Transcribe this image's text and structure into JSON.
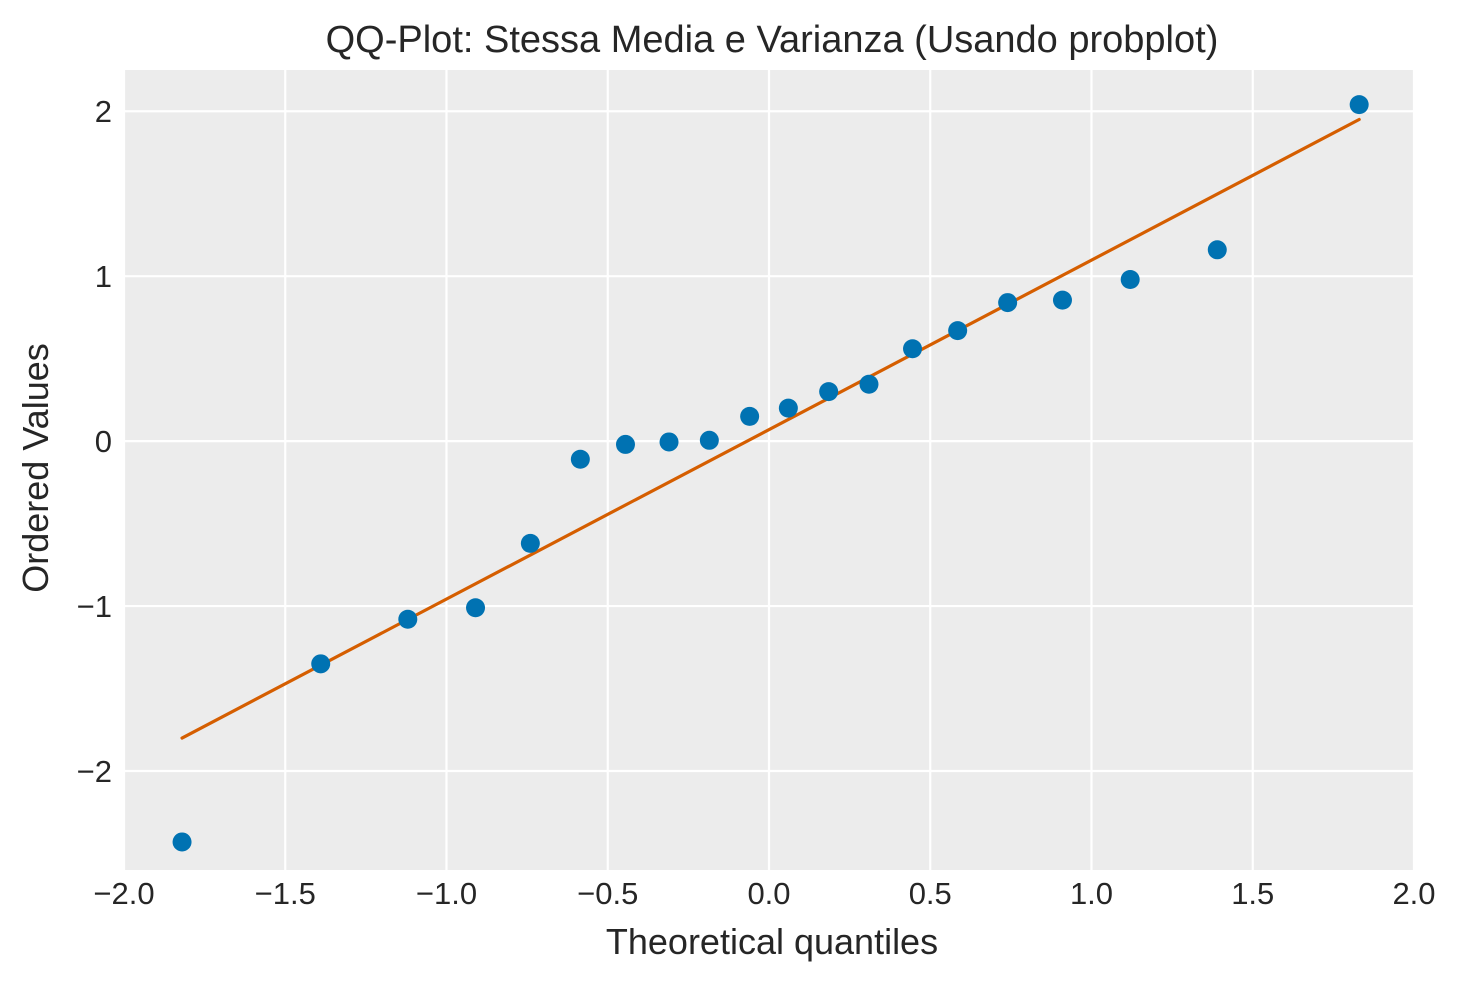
{
  "chart_data": {
    "type": "scatter",
    "title": "QQ-Plot: Stessa Media e Varianza (Usando probplot)",
    "xlabel": "Theoretical quantiles",
    "ylabel": "Ordered Values",
    "xlim": [
      -2.0,
      2.0
    ],
    "ylim": [
      -2.6,
      2.25
    ],
    "xticks": [
      -2.0,
      -1.5,
      -1.0,
      -0.5,
      0.0,
      0.5,
      1.0,
      1.5,
      2.0
    ],
    "xtick_labels": [
      "−2.0",
      "−1.5",
      "−1.0",
      "−0.5",
      "0.0",
      "0.5",
      "1.0",
      "1.5",
      "2.0"
    ],
    "yticks": [
      -2,
      -1,
      0,
      1,
      2
    ],
    "ytick_labels": [
      "−2",
      "−1",
      "0",
      "1",
      "2"
    ],
    "grid": true,
    "colors": {
      "background": "#ececec",
      "grid": "#ffffff",
      "points": "#0072b2",
      "fit_line": "#d55e00"
    },
    "series": [
      {
        "type": "scatter",
        "x": [
          -1.82,
          -1.39,
          -1.12,
          -0.91,
          -0.74,
          -0.585,
          -0.445,
          -0.31,
          -0.185,
          -0.06,
          0.06,
          0.185,
          0.31,
          0.445,
          0.585,
          0.74,
          0.91,
          1.12,
          1.39,
          1.83
        ],
        "y": [
          -2.43,
          -1.35,
          -1.08,
          -1.01,
          -0.62,
          -0.11,
          -0.02,
          -0.005,
          0.005,
          0.15,
          0.2,
          0.3,
          0.345,
          0.56,
          0.67,
          0.84,
          0.855,
          0.98,
          1.16,
          2.04
        ]
      },
      {
        "type": "line",
        "x": [
          -1.82,
          1.83
        ],
        "y": [
          -1.8,
          1.95
        ]
      }
    ]
  }
}
